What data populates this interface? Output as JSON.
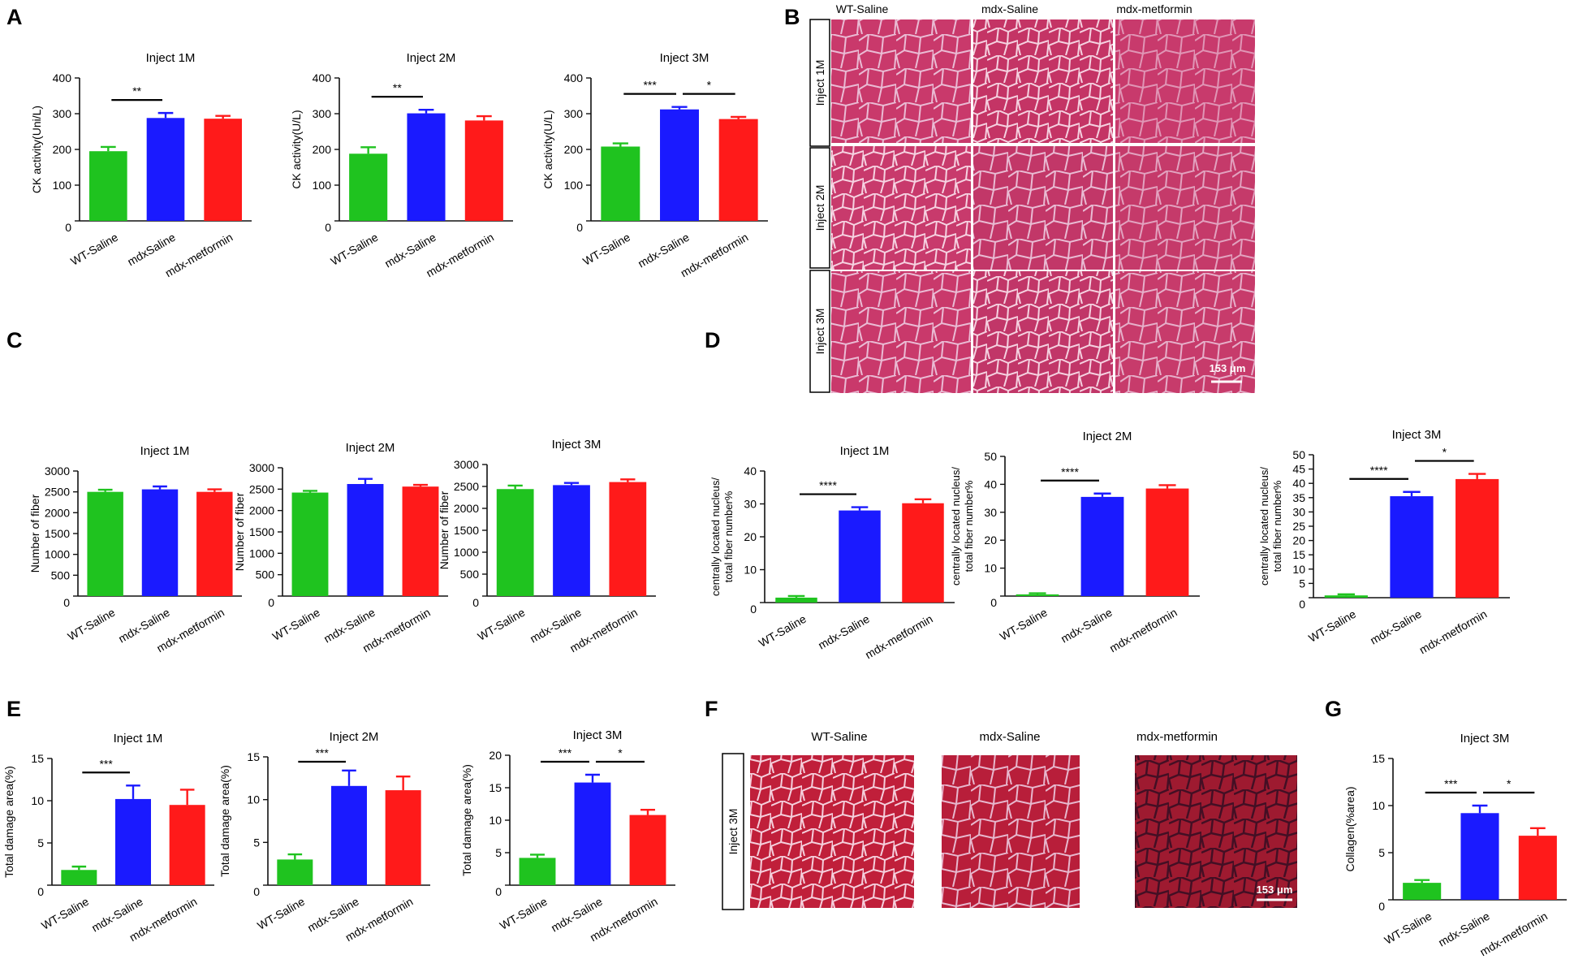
{
  "panels": {
    "a": "A",
    "b": "B",
    "c": "C",
    "d": "D",
    "e": "E",
    "f": "F",
    "g": "G"
  },
  "colors": {
    "wt_saline": "#1fc31f",
    "mdx_saline": "#1a1aff",
    "mdx_metformin": "#ff1a1a",
    "tissue": "#c9396b",
    "trichrome": "#b51f3c"
  },
  "micrographs_b": {
    "col_headers": [
      "WT-Saline",
      "mdx-Saline",
      "mdx-metformin"
    ],
    "row_labels": [
      "Inject 1M",
      "Inject 2M",
      "Inject 3M"
    ],
    "scale_bar": "153 μm"
  },
  "micrographs_f": {
    "col_headers": [
      "WT-Saline",
      "mdx-Saline",
      "mdx-metformin"
    ],
    "row_label": "Inject 3M",
    "scale_bar": "153 μm"
  },
  "chart_data": [
    {
      "id": "A1",
      "type": "bar",
      "title": "Inject 1M",
      "ylabel": "CK activity(Uni/L)",
      "ylim": [
        0,
        400
      ],
      "yticks": [
        0,
        100,
        200,
        300,
        400
      ],
      "categories": [
        "WT-Saline",
        "mdxSaline",
        "mdx-metformin"
      ],
      "values": [
        195,
        288,
        286
      ],
      "errors": [
        12,
        14,
        8
      ],
      "significance": [
        {
          "from": 0,
          "to": 1,
          "label": "**"
        }
      ]
    },
    {
      "id": "A2",
      "type": "bar",
      "title": "Inject 2M",
      "ylabel": "CK activity(U/L)",
      "ylim": [
        0,
        400
      ],
      "yticks": [
        0,
        100,
        200,
        300,
        400
      ],
      "categories": [
        "WT-Saline",
        "mdx-Saline",
        "mdx-metformin"
      ],
      "values": [
        188,
        301,
        281
      ],
      "errors": [
        18,
        10,
        12
      ],
      "significance": [
        {
          "from": 0,
          "to": 1,
          "label": "**"
        }
      ]
    },
    {
      "id": "A3",
      "type": "bar",
      "title": "Inject 3M",
      "ylabel": "CK activity(U/L)",
      "ylim": [
        0,
        400
      ],
      "yticks": [
        0,
        100,
        200,
        300,
        400
      ],
      "categories": [
        "WT-Saline",
        "mdx-Saline",
        "mdx-metformin"
      ],
      "values": [
        208,
        312,
        285
      ],
      "errors": [
        9,
        7,
        6
      ],
      "significance": [
        {
          "from": 0,
          "to": 1,
          "label": "***"
        },
        {
          "from": 1,
          "to": 2,
          "label": "*"
        }
      ]
    },
    {
      "id": "C1",
      "type": "bar",
      "title": "Inject 1M",
      "ylabel": "Number of fiber",
      "ylim": [
        0,
        3000
      ],
      "yticks": [
        0,
        500,
        1000,
        1500,
        2000,
        2500,
        3000
      ],
      "categories": [
        "WT-Saline",
        "mdx-Saline",
        "mdx-metformin"
      ],
      "values": [
        2500,
        2560,
        2500
      ],
      "errors": [
        50,
        70,
        60
      ],
      "significance": []
    },
    {
      "id": "C2",
      "type": "bar",
      "title": "Inject 2M",
      "ylabel": "Number of fiber",
      "ylim": [
        0,
        3000
      ],
      "yticks": [
        0,
        500,
        1000,
        1500,
        2000,
        2500,
        3000
      ],
      "categories": [
        "WT-Saline",
        "mdx-Saline",
        "mdx-metformin"
      ],
      "values": [
        2420,
        2620,
        2560
      ],
      "errors": [
        40,
        120,
        40
      ],
      "significance": []
    },
    {
      "id": "C3",
      "type": "bar",
      "title": "Inject 3M",
      "ylabel": "Number of fiber",
      "ylim": [
        0,
        3000
      ],
      "yticks": [
        0,
        500,
        1000,
        1500,
        2000,
        2500,
        3000
      ],
      "categories": [
        "WT-Saline",
        "mdx-Saline",
        "mdx-metformin"
      ],
      "values": [
        2440,
        2530,
        2600
      ],
      "errors": [
        80,
        50,
        60
      ],
      "significance": []
    },
    {
      "id": "D1",
      "type": "bar",
      "title": "Inject 1M",
      "ylabel": "centrally located nucleus/ total fiber number%",
      "ylim": [
        0,
        40
      ],
      "yticks": [
        0,
        10,
        20,
        30,
        40
      ],
      "categories": [
        "WT-Saline",
        "mdx-Saline",
        "mdx-metformin"
      ],
      "values": [
        1.5,
        28,
        30.2
      ],
      "errors": [
        0.5,
        1,
        1.2
      ],
      "significance": [
        {
          "from": 0,
          "to": 1,
          "label": "****"
        }
      ]
    },
    {
      "id": "D2",
      "type": "bar",
      "title": "Inject 2M",
      "ylabel": "centrally located nucleus/ total fiber number%",
      "ylim": [
        0,
        50
      ],
      "yticks": [
        0,
        10,
        20,
        30,
        40,
        50
      ],
      "categories": [
        "WT-Saline",
        "mdx-Saline",
        "mdx-metformin"
      ],
      "values": [
        0.6,
        35.5,
        38.5
      ],
      "errors": [
        0.4,
        1.2,
        1.2
      ],
      "significance": [
        {
          "from": 0,
          "to": 1,
          "label": "****"
        }
      ]
    },
    {
      "id": "D3",
      "type": "bar",
      "title": "Inject 3M",
      "ylabel": "centrally located nucleus/ total fiber number%",
      "ylim": [
        0,
        50
      ],
      "yticks": [
        0,
        5,
        10,
        15,
        20,
        25,
        30,
        35,
        40,
        45,
        50
      ],
      "categories": [
        "WT-Saline",
        "mdx-Saline",
        "mdx-metformin"
      ],
      "values": [
        0.8,
        35.5,
        41.5
      ],
      "errors": [
        0.4,
        1.5,
        1.8
      ],
      "significance": [
        {
          "from": 0,
          "to": 1,
          "label": "****"
        },
        {
          "from": 1,
          "to": 2,
          "label": "*"
        }
      ]
    },
    {
      "id": "E1",
      "type": "bar",
      "title": "Inject 1M",
      "ylabel": "Total damage area(%)",
      "ylim": [
        0,
        15
      ],
      "yticks": [
        0,
        5,
        10,
        15
      ],
      "categories": [
        "WT-Saline",
        "mdx-Saline",
        "mdx-metformin"
      ],
      "values": [
        1.8,
        10.2,
        9.5
      ],
      "errors": [
        0.4,
        1.6,
        1.8
      ],
      "significance": [
        {
          "from": 0,
          "to": 1,
          "label": "***"
        }
      ]
    },
    {
      "id": "E2",
      "type": "bar",
      "title": "Inject 2M",
      "ylabel": "Total damage area(%)",
      "ylim": [
        0,
        15
      ],
      "yticks": [
        0,
        5,
        10,
        15
      ],
      "categories": [
        "WT-Saline",
        "mdx-Saline",
        "mdx-metformin"
      ],
      "values": [
        3.0,
        11.6,
        11.1
      ],
      "errors": [
        0.6,
        1.8,
        1.6
      ],
      "significance": [
        {
          "from": 0,
          "to": 1,
          "label": "***"
        }
      ]
    },
    {
      "id": "E3",
      "type": "bar",
      "title": "Inject 3M",
      "ylabel": "Total damage area(%)",
      "ylim": [
        0,
        20
      ],
      "yticks": [
        0,
        5,
        10,
        15,
        20
      ],
      "categories": [
        "WT-Saline",
        "mdx-Saline",
        "mdx-metformin"
      ],
      "values": [
        4.2,
        15.8,
        10.8
      ],
      "errors": [
        0.5,
        1.2,
        0.8
      ],
      "significance": [
        {
          "from": 0,
          "to": 1,
          "label": "***"
        },
        {
          "from": 1,
          "to": 2,
          "label": "*"
        }
      ]
    },
    {
      "id": "G1",
      "type": "bar",
      "title": "Inject 3M",
      "ylabel": "Collagen(%area)",
      "ylim": [
        0,
        15
      ],
      "yticks": [
        0,
        5,
        10,
        15
      ],
      "categories": [
        "WT-Saline",
        "mdx-Saline",
        "mdx-metformin"
      ],
      "values": [
        1.8,
        9.2,
        6.8
      ],
      "errors": [
        0.3,
        0.8,
        0.8
      ],
      "significance": [
        {
          "from": 0,
          "to": 1,
          "label": "***"
        },
        {
          "from": 1,
          "to": 2,
          "label": "*"
        }
      ]
    }
  ]
}
